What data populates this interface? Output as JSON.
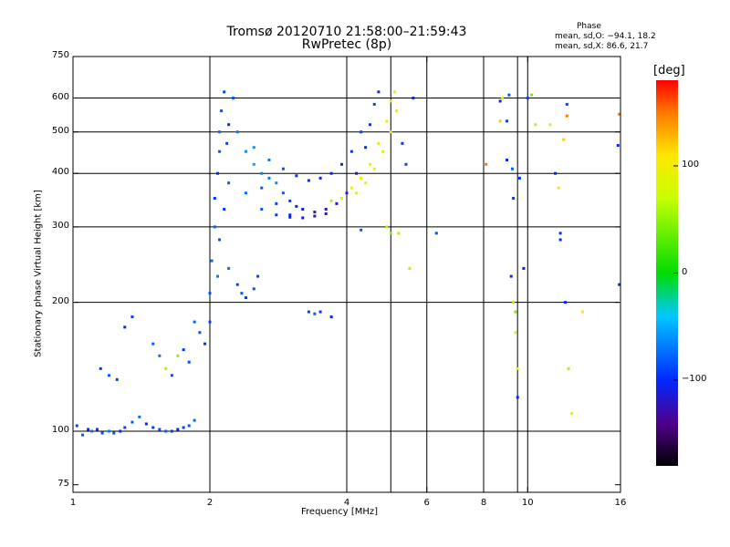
{
  "header": {
    "title_line1": "Tromsø 20120710 21:58:00–21:59:43",
    "title_line2": "RwPretec (8p)",
    "phase_heading": "Phase",
    "phase_line1": "mean, sd,O: −94.1, 18.2",
    "phase_line2": "mean, sd,X:  86.6, 21.7"
  },
  "colorbar": {
    "unit_label": "[deg]",
    "ticks": [
      "100",
      "0",
      "−100"
    ],
    "tick_values": [
      100,
      0,
      -100
    ],
    "range": [
      -180,
      180
    ]
  },
  "chart_data": {
    "type": "scatter",
    "xlabel": "Frequency [MHz]",
    "ylabel": "Stationary phase Virtual Height [km]",
    "xscale": "log",
    "yscale": "log",
    "xlim": [
      1,
      16
    ],
    "ylim": [
      72,
      750
    ],
    "x_ticks": [
      1,
      2,
      4,
      6,
      8,
      10,
      16
    ],
    "x_tick_labels": [
      "1",
      "2",
      "4",
      "6",
      "8",
      "10",
      "16"
    ],
    "y_ticks": [
      75,
      100,
      200,
      300,
      400,
      500,
      600,
      750
    ],
    "y_tick_labels": [
      "75",
      "100",
      "200",
      "300",
      "400",
      "500",
      "600",
      "750"
    ],
    "grid_x": [
      2,
      4,
      5,
      6,
      8,
      9.5,
      10
    ],
    "grid_y": [
      100,
      200,
      300,
      400,
      500,
      600
    ],
    "color_scale": "phase [deg], rainbow from −180 (black) to +180 (red)",
    "point_columns": [
      "frequency_MHz",
      "height_km",
      "phase_deg"
    ],
    "points": [
      [
        1.02,
        103,
        -90
      ],
      [
        1.05,
        98,
        -80
      ],
      [
        1.08,
        101,
        -100
      ],
      [
        1.1,
        100,
        -75
      ],
      [
        1.13,
        101,
        -95
      ],
      [
        1.16,
        99,
        -85
      ],
      [
        1.2,
        100,
        -70
      ],
      [
        1.23,
        99,
        -80
      ],
      [
        1.27,
        100,
        -100
      ],
      [
        1.3,
        102,
        -90
      ],
      [
        1.35,
        105,
        -80
      ],
      [
        1.4,
        108,
        -75
      ],
      [
        1.45,
        104,
        -100
      ],
      [
        1.5,
        102,
        -90
      ],
      [
        1.55,
        101,
        -85
      ],
      [
        1.6,
        100,
        -80
      ],
      [
        1.65,
        100,
        -95
      ],
      [
        1.7,
        101,
        -100
      ],
      [
        1.75,
        102,
        -90
      ],
      [
        1.8,
        103,
        -85
      ],
      [
        1.85,
        106,
        -75
      ],
      [
        1.15,
        140,
        -95
      ],
      [
        1.2,
        135,
        -80
      ],
      [
        1.25,
        132,
        -90
      ],
      [
        1.3,
        175,
        -100
      ],
      [
        1.35,
        185,
        -90
      ],
      [
        1.5,
        160,
        -80
      ],
      [
        1.55,
        150,
        -70
      ],
      [
        1.6,
        140,
        60
      ],
      [
        1.65,
        135,
        -85
      ],
      [
        1.7,
        150,
        50
      ],
      [
        1.75,
        155,
        -95
      ],
      [
        1.8,
        145,
        -90
      ],
      [
        1.85,
        180,
        -80
      ],
      [
        1.9,
        170,
        -85
      ],
      [
        1.95,
        160,
        -95
      ],
      [
        2.0,
        180,
        -90
      ],
      [
        2.0,
        210,
        -85
      ],
      [
        2.02,
        250,
        -75
      ],
      [
        2.05,
        300,
        -80
      ],
      [
        2.05,
        350,
        -95
      ],
      [
        2.08,
        400,
        -100
      ],
      [
        2.1,
        450,
        -80
      ],
      [
        2.1,
        500,
        -75
      ],
      [
        2.12,
        560,
        -85
      ],
      [
        2.15,
        620,
        -90
      ],
      [
        2.08,
        230,
        -70
      ],
      [
        2.1,
        280,
        -85
      ],
      [
        2.15,
        330,
        -95
      ],
      [
        2.2,
        380,
        -80
      ],
      [
        2.18,
        470,
        -90
      ],
      [
        2.2,
        520,
        -100
      ],
      [
        2.25,
        600,
        -85
      ],
      [
        2.3,
        220,
        -90
      ],
      [
        2.35,
        210,
        -80
      ],
      [
        2.4,
        205,
        -95
      ],
      [
        2.5,
        215,
        -85
      ],
      [
        2.55,
        230,
        -90
      ],
      [
        2.2,
        240,
        -75
      ],
      [
        2.3,
        500,
        -70
      ],
      [
        2.4,
        450,
        -60
      ],
      [
        2.5,
        420,
        -55
      ],
      [
        2.6,
        400,
        -65
      ],
      [
        2.7,
        390,
        -70
      ],
      [
        2.8,
        380,
        -60
      ],
      [
        2.9,
        360,
        -80
      ],
      [
        3.0,
        345,
        -90
      ],
      [
        3.1,
        335,
        -100
      ],
      [
        3.2,
        330,
        -110
      ],
      [
        3.4,
        325,
        -120
      ],
      [
        3.6,
        330,
        -115
      ],
      [
        3.8,
        340,
        -110
      ],
      [
        4.0,
        360,
        -105
      ],
      [
        4.2,
        400,
        -110
      ],
      [
        4.4,
        460,
        -100
      ],
      [
        4.5,
        520,
        -95
      ],
      [
        4.6,
        580,
        -90
      ],
      [
        4.7,
        620,
        -100
      ],
      [
        2.5,
        460,
        -60
      ],
      [
        2.7,
        430,
        -70
      ],
      [
        2.9,
        410,
        -85
      ],
      [
        3.1,
        395,
        -95
      ],
      [
        3.3,
        385,
        -100
      ],
      [
        3.5,
        390,
        -110
      ],
      [
        3.7,
        400,
        -105
      ],
      [
        3.9,
        420,
        -100
      ],
      [
        4.1,
        450,
        -95
      ],
      [
        4.3,
        500,
        -90
      ],
      [
        2.6,
        370,
        -80
      ],
      [
        2.8,
        340,
        -90
      ],
      [
        3.0,
        320,
        -100
      ],
      [
        3.2,
        315,
        -110
      ],
      [
        3.4,
        318,
        -120
      ],
      [
        3.6,
        322,
        -115
      ],
      [
        2.4,
        360,
        -75
      ],
      [
        2.6,
        330,
        -85
      ],
      [
        2.8,
        320,
        -95
      ],
      [
        3.0,
        316,
        -105
      ],
      [
        3.3,
        190,
        -90
      ],
      [
        3.4,
        188,
        -80
      ],
      [
        3.5,
        190,
        -95
      ],
      [
        3.7,
        185,
        -100
      ],
      [
        3.7,
        345,
        60
      ],
      [
        3.9,
        350,
        80
      ],
      [
        4.1,
        370,
        90
      ],
      [
        4.3,
        390,
        85
      ],
      [
        4.5,
        420,
        100
      ],
      [
        4.7,
        470,
        95
      ],
      [
        4.9,
        530,
        110
      ],
      [
        5.0,
        590,
        105
      ],
      [
        5.1,
        620,
        100
      ],
      [
        4.2,
        360,
        70
      ],
      [
        4.4,
        380,
        80
      ],
      [
        4.6,
        410,
        90
      ],
      [
        4.8,
        450,
        95
      ],
      [
        5.0,
        500,
        100
      ],
      [
        5.15,
        560,
        110
      ],
      [
        4.9,
        300,
        60
      ],
      [
        5.0,
        290,
        50
      ],
      [
        5.2,
        290,
        60
      ],
      [
        4.3,
        295,
        -80
      ],
      [
        5.3,
        470,
        -95
      ],
      [
        5.4,
        420,
        -90
      ],
      [
        5.5,
        240,
        60
      ],
      [
        5.6,
        600,
        -100
      ],
      [
        6.3,
        290,
        -85
      ],
      [
        8.1,
        420,
        150
      ],
      [
        8.7,
        590,
        -110
      ],
      [
        8.7,
        530,
        120
      ],
      [
        8.8,
        600,
        80
      ],
      [
        9.0,
        530,
        -90
      ],
      [
        9.0,
        430,
        -100
      ],
      [
        9.1,
        610,
        -85
      ],
      [
        9.2,
        230,
        -100
      ],
      [
        9.25,
        410,
        -80
      ],
      [
        9.3,
        350,
        -95
      ],
      [
        9.3,
        200,
        60
      ],
      [
        9.4,
        190,
        40
      ],
      [
        9.4,
        170,
        90
      ],
      [
        9.5,
        140,
        80
      ],
      [
        9.5,
        120,
        -100
      ],
      [
        9.6,
        390,
        -95
      ],
      [
        9.8,
        240,
        -110
      ],
      [
        10.0,
        600,
        -90
      ],
      [
        10.2,
        610,
        40
      ],
      [
        10.4,
        520,
        60
      ],
      [
        11.2,
        520,
        100
      ],
      [
        11.5,
        400,
        -100
      ],
      [
        11.7,
        370,
        110
      ],
      [
        11.8,
        290,
        -95
      ],
      [
        11.8,
        280,
        -100
      ],
      [
        12.0,
        480,
        120
      ],
      [
        12.2,
        580,
        -90
      ],
      [
        12.2,
        545,
        150
      ],
      [
        12.1,
        200,
        -100
      ],
      [
        12.3,
        140,
        60
      ],
      [
        12.5,
        110,
        80
      ],
      [
        13.2,
        190,
        110
      ],
      [
        15.8,
        465,
        -100
      ],
      [
        15.9,
        220,
        -95
      ],
      [
        15.9,
        550,
        150
      ]
    ]
  }
}
